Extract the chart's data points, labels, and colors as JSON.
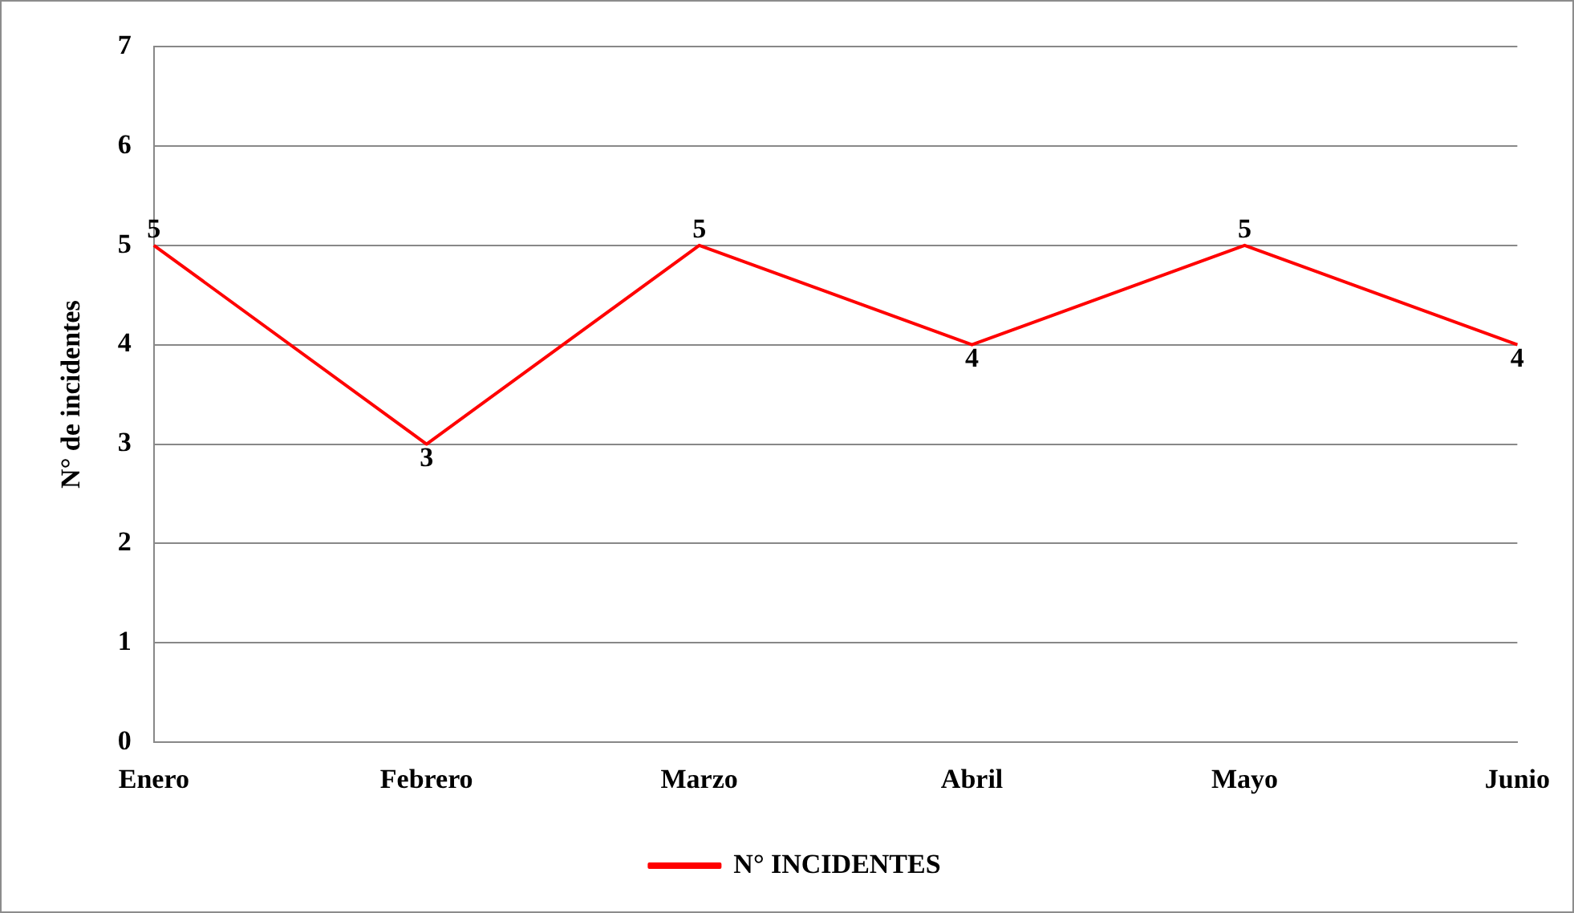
{
  "chart_data": {
    "type": "line",
    "ylabel": "N° de incidentes",
    "categories": [
      "Enero",
      "Febrero",
      "Marzo",
      "Abril",
      "Mayo",
      "Junio"
    ],
    "series": [
      {
        "name": "N° INCIDENTES",
        "color": "#ff0000",
        "values": [
          5,
          3,
          5,
          4,
          5,
          4
        ]
      }
    ],
    "ylim": [
      0,
      7
    ],
    "yticks": [
      0,
      1,
      2,
      3,
      4,
      5,
      6,
      7
    ],
    "grid": "y",
    "legend": "bottom",
    "marker": "none",
    "line_style": "solid",
    "data_labels": true
  }
}
